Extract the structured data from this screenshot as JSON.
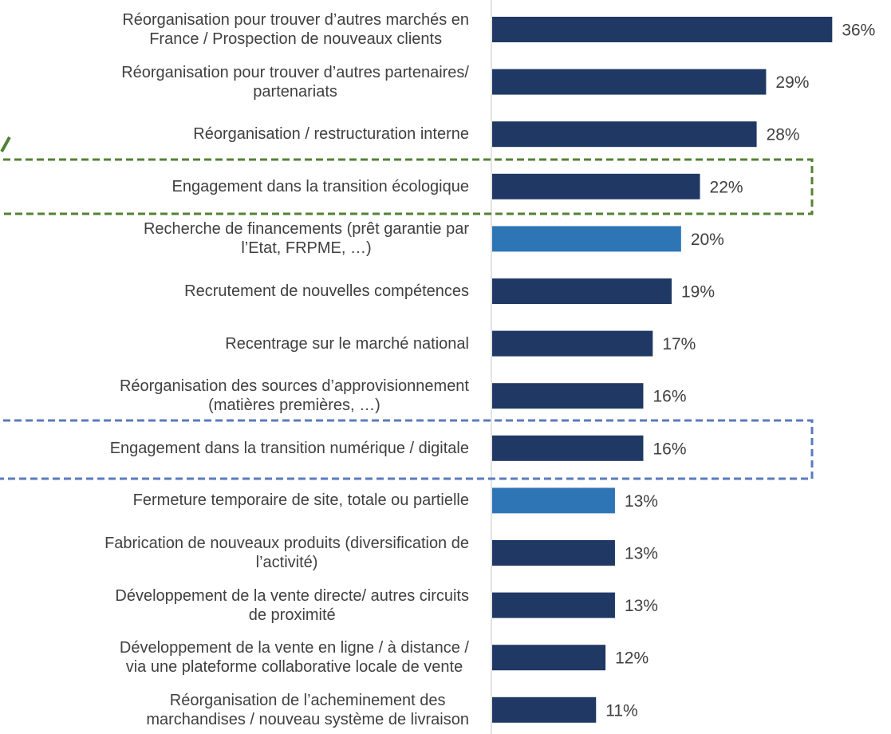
{
  "chart_data": {
    "type": "bar",
    "orientation": "horizontal",
    "categories": [
      "Réorganisation pour trouver d’autres marchés en\nFrance / Prospection de nouveaux clients",
      "Réorganisation pour trouver d’autres partenaires/\npartenariats",
      "Réorganisation / restructuration interne",
      "Engagement dans la transition écologique",
      "Recherche de financements (prêt garantie par\nl’Etat, FRPME, …)",
      "Recrutement de nouvelles compétences",
      "Recentrage sur le marché national",
      "Réorganisation des sources d’approvisionnement\n(matières premières, …)",
      "Engagement dans la transition numérique / digitale",
      "Fermeture temporaire de site, totale ou partielle",
      "Fabrication de nouveaux produits (diversification de\nl’activité)",
      "Développement de la vente directe/ autres circuits\nde proximité",
      "Développement de la vente en ligne / à distance /\nvia une plateforme collaborative locale de vente",
      "Réorganisation de l’acheminement des\nmarchandises / nouveau système de livraison"
    ],
    "values": [
      36,
      29,
      28,
      22,
      20,
      19,
      17,
      16,
      16,
      13,
      13,
      13,
      12,
      11
    ],
    "value_labels": [
      "36%",
      "29%",
      "28%",
      "22%",
      "20%",
      "19%",
      "17%",
      "16%",
      "16%",
      "13%",
      "13%",
      "13%",
      "12%",
      "11%"
    ],
    "colors": [
      "#203864",
      "#203864",
      "#203864",
      "#203864",
      "#2e75b6",
      "#203864",
      "#203864",
      "#203864",
      "#203864",
      "#2e75b6",
      "#203864",
      "#203864",
      "#203864",
      "#203864"
    ],
    "xlim": [
      0,
      38
    ]
  }
}
